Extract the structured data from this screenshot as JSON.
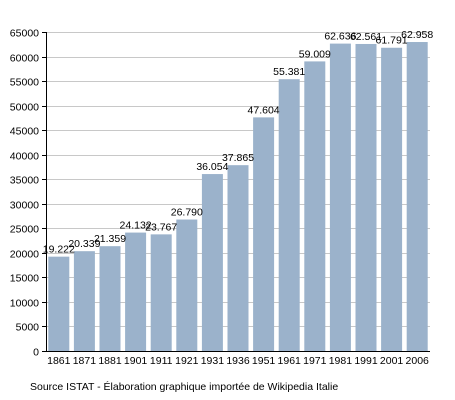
{
  "chart_data": {
    "type": "bar",
    "categories": [
      "1861",
      "1871",
      "1881",
      "1901",
      "1911",
      "1921",
      "1931",
      "1936",
      "1951",
      "1961",
      "1971",
      "1981",
      "1991",
      "2001",
      "2006"
    ],
    "values": [
      19222,
      20339,
      21359,
      24132,
      23767,
      26790,
      36054,
      37865,
      47604,
      55381,
      59009,
      62636,
      62561,
      61791,
      62958
    ],
    "data_labels": [
      "19.222",
      "20.339",
      "21.359",
      "24.132",
      "23.767",
      "26.790",
      "36.054",
      "37.865",
      "47.604",
      "55.381",
      "59.009",
      "62.636",
      "62.561",
      "61.791",
      "62.958"
    ],
    "ylim": [
      0,
      65000
    ],
    "yticks": [
      0,
      5000,
      10000,
      15000,
      20000,
      25000,
      30000,
      35000,
      40000,
      45000,
      50000,
      55000,
      60000,
      65000
    ],
    "ytick_labels": [
      "0",
      "5000",
      "10000",
      "15000",
      "20000",
      "25000",
      "30000",
      "35000",
      "40000",
      "45000",
      "50000",
      "55000",
      "60000",
      "65000"
    ],
    "grid": true,
    "bar_color": "#9bb2cb",
    "grid_color": "#c8c8c8",
    "axis_color": "#000000"
  },
  "footer": {
    "source": "Source ISTAT - Élaboration graphique importée de Wikipedia Italie"
  }
}
